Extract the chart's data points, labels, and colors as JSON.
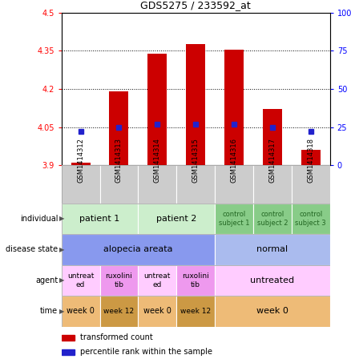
{
  "title": "GDS5275 / 233592_at",
  "samples": [
    "GSM1414312",
    "GSM1414313",
    "GSM1414314",
    "GSM1414315",
    "GSM1414316",
    "GSM1414317",
    "GSM1414318"
  ],
  "transformed_count": [
    3.91,
    4.19,
    4.34,
    4.375,
    4.355,
    4.12,
    3.96
  ],
  "percentile_rank": [
    22,
    25,
    27,
    27,
    27,
    25,
    22
  ],
  "ylim_left": [
    3.9,
    4.5
  ],
  "ylim_right": [
    0,
    100
  ],
  "yticks_left": [
    3.9,
    4.05,
    4.2,
    4.35,
    4.5
  ],
  "yticks_right": [
    0,
    25,
    50,
    75,
    100
  ],
  "bar_color": "#cc0000",
  "dot_color": "#2222cc",
  "bar_bottom": 3.9,
  "metadata_rows": [
    {
      "label": "individual",
      "cells": [
        {
          "text": "patient 1",
          "span": 2,
          "color": "#cceecc",
          "text_color": "#000000",
          "fontsize": 8
        },
        {
          "text": "patient 2",
          "span": 2,
          "color": "#cceecc",
          "text_color": "#000000",
          "fontsize": 8
        },
        {
          "text": "control\nsubject 1",
          "span": 1,
          "color": "#88cc88",
          "text_color": "#226622",
          "fontsize": 6
        },
        {
          "text": "control\nsubject 2",
          "span": 1,
          "color": "#88cc88",
          "text_color": "#226622",
          "fontsize": 6
        },
        {
          "text": "control\nsubject 3",
          "span": 1,
          "color": "#88cc88",
          "text_color": "#226622",
          "fontsize": 6
        }
      ]
    },
    {
      "label": "disease state",
      "cells": [
        {
          "text": "alopecia areata",
          "span": 4,
          "color": "#8899ee",
          "text_color": "#000000",
          "fontsize": 8
        },
        {
          "text": "normal",
          "span": 3,
          "color": "#aabbee",
          "text_color": "#000000",
          "fontsize": 8
        }
      ]
    },
    {
      "label": "agent",
      "cells": [
        {
          "text": "untreat\ned",
          "span": 1,
          "color": "#ffccff",
          "text_color": "#000000",
          "fontsize": 6.5
        },
        {
          "text": "ruxolini\ntib",
          "span": 1,
          "color": "#ee99ee",
          "text_color": "#000000",
          "fontsize": 6.5
        },
        {
          "text": "untreat\ned",
          "span": 1,
          "color": "#ffccff",
          "text_color": "#000000",
          "fontsize": 6.5
        },
        {
          "text": "ruxolini\ntib",
          "span": 1,
          "color": "#ee99ee",
          "text_color": "#000000",
          "fontsize": 6.5
        },
        {
          "text": "untreated",
          "span": 3,
          "color": "#ffccff",
          "text_color": "#000000",
          "fontsize": 8
        }
      ]
    },
    {
      "label": "time",
      "cells": [
        {
          "text": "week 0",
          "span": 1,
          "color": "#eebb77",
          "text_color": "#000000",
          "fontsize": 7
        },
        {
          "text": "week 12",
          "span": 1,
          "color": "#cc9944",
          "text_color": "#000000",
          "fontsize": 6.5
        },
        {
          "text": "week 0",
          "span": 1,
          "color": "#eebb77",
          "text_color": "#000000",
          "fontsize": 7
        },
        {
          "text": "week 12",
          "span": 1,
          "color": "#cc9944",
          "text_color": "#000000",
          "fontsize": 6.5
        },
        {
          "text": "week 0",
          "span": 3,
          "color": "#eebb77",
          "text_color": "#000000",
          "fontsize": 8
        }
      ]
    }
  ],
  "legend": [
    {
      "color": "#cc0000",
      "label": "transformed count"
    },
    {
      "color": "#2222cc",
      "label": "percentile rank within the sample"
    }
  ],
  "bg_gray": "#cccccc"
}
